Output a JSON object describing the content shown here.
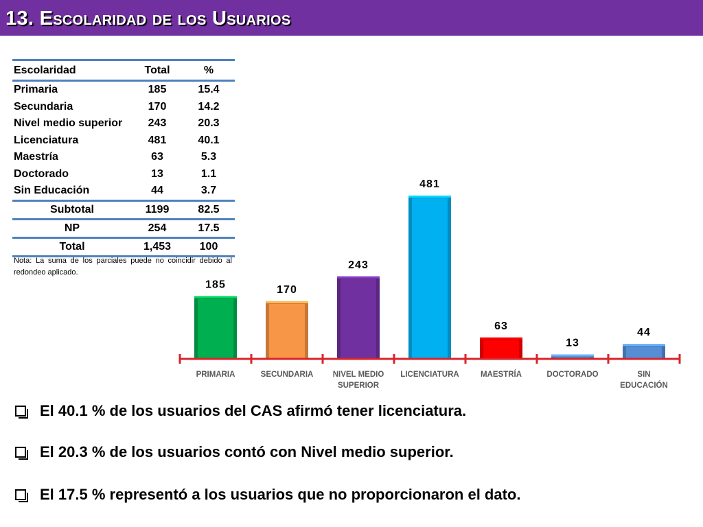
{
  "header": {
    "title": "13. Escolaridad de los Usuarios"
  },
  "table": {
    "headers": [
      "Escolaridad",
      "Total",
      "%"
    ],
    "rows": [
      [
        "Primaria",
        "185",
        "15.4"
      ],
      [
        "Secundaria",
        "170",
        "14.2"
      ],
      [
        "Nivel medio superior",
        "243",
        "20.3"
      ],
      [
        "Licenciatura",
        "481",
        "40.1"
      ],
      [
        "Maestría",
        "63",
        "5.3"
      ],
      [
        "Doctorado",
        "13",
        "1.1"
      ],
      [
        "Sin Educación",
        "44",
        "3.7"
      ]
    ],
    "summary": [
      [
        "Subtotal",
        "1199",
        "82.5"
      ],
      [
        "NP",
        "254",
        "17.5"
      ],
      [
        "Total",
        "1,453",
        "100"
      ]
    ],
    "note": "Nota: La suma de los parciales puede no coincidir debido al redondeo aplicado."
  },
  "chart_data": {
    "type": "bar",
    "categories": [
      "PRIMARIA",
      "SECUNDARIA",
      "NIVEL MEDIO SUPERIOR",
      "LICENCIATURA",
      "MAESTRÍA",
      "DOCTORADO",
      "SIN EDUCACIÓN"
    ],
    "values": [
      185,
      170,
      243,
      481,
      63,
      13,
      44
    ],
    "data_labels": [
      "185",
      "170",
      "243",
      "481",
      "63",
      "13",
      "44"
    ],
    "colors": [
      "#00b050",
      "#f79646",
      "#7030a0",
      "#00b0f0",
      "#ff0000",
      "#558ed5",
      "#558ed5"
    ],
    "axis_color": "#d9242b",
    "ylim": [
      0,
      481
    ],
    "grid": false,
    "title": "",
    "xlabel": "",
    "ylabel": ""
  },
  "bullets": [
    "El 40.1 % de los usuarios del CAS afirmó tener licenciatura.",
    "El 20.3 % de los usuarios contó con Nivel medio superior.",
    "El 17.5 % representó a los usuarios que no proporcionaron el dato."
  ]
}
